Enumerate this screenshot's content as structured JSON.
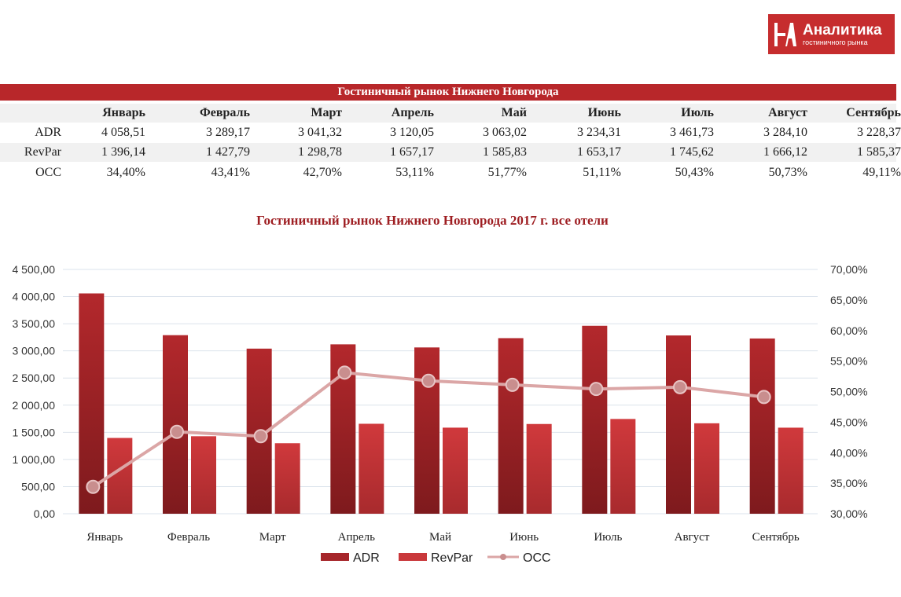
{
  "logo": {
    "title": "Аналитика",
    "subtitle": "гостиничного рынка"
  },
  "table": {
    "title": "Гостиничный рынок Нижнего Новгорода",
    "months": [
      "Январь",
      "Февраль",
      "Март",
      "Апрель",
      "Май",
      "Июнь",
      "Июль",
      "Август",
      "Сентябрь"
    ],
    "rows": [
      {
        "label": "ADR",
        "values": [
          "4 058,51",
          "3 289,17",
          "3 041,32",
          "3 120,05",
          "3 063,02",
          "3 234,31",
          "3 461,73",
          "3 284,10",
          "3 228,37"
        ]
      },
      {
        "label": "RevPar",
        "values": [
          "1 396,14",
          "1 427,79",
          "1 298,78",
          "1 657,17",
          "1 585,83",
          "1 653,17",
          "1 745,62",
          "1 666,12",
          "1 585,37"
        ]
      },
      {
        "label": "OCC",
        "values": [
          "34,40%",
          "43,41%",
          "42,70%",
          "53,11%",
          "51,77%",
          "51,11%",
          "50,43%",
          "50,73%",
          "49,11%"
        ]
      }
    ]
  },
  "chart_data": {
    "type": "bar",
    "title": "Гостиничный рынок Нижнего Новгорода 2017 г. все отели",
    "categories": [
      "Январь",
      "Февраль",
      "Март",
      "Апрель",
      "Май",
      "Июнь",
      "Июль",
      "Август",
      "Сентябрь"
    ],
    "series": [
      {
        "name": "ADR",
        "type": "bar",
        "axis": "left",
        "color": "#a6262a",
        "values": [
          4058.51,
          3289.17,
          3041.32,
          3120.05,
          3063.02,
          3234.31,
          3461.73,
          3284.1,
          3228.37
        ]
      },
      {
        "name": "RevPar",
        "type": "bar",
        "axis": "left",
        "color": "#c9383b",
        "values": [
          1396.14,
          1427.79,
          1298.78,
          1657.17,
          1585.83,
          1653.17,
          1745.62,
          1666.12,
          1585.37
        ]
      },
      {
        "name": "OCC",
        "type": "line",
        "axis": "right",
        "color": "#dba6a6",
        "values": [
          34.4,
          43.41,
          42.7,
          53.11,
          51.77,
          51.11,
          50.43,
          50.73,
          49.11
        ]
      }
    ],
    "ylim_left": [
      0,
      4500
    ],
    "yticks_left": [
      "0,00",
      "500,00",
      "1 000,00",
      "1 500,00",
      "2 000,00",
      "2 500,00",
      "3 000,00",
      "3 500,00",
      "4 000,00",
      "4 500,00"
    ],
    "ylim_right": [
      30,
      70
    ],
    "yticks_right": [
      "30,00%",
      "35,00%",
      "40,00%",
      "45,00%",
      "50,00%",
      "55,00%",
      "60,00%",
      "65,00%",
      "70,00%"
    ],
    "grid": true,
    "legend_position": "bottom"
  }
}
